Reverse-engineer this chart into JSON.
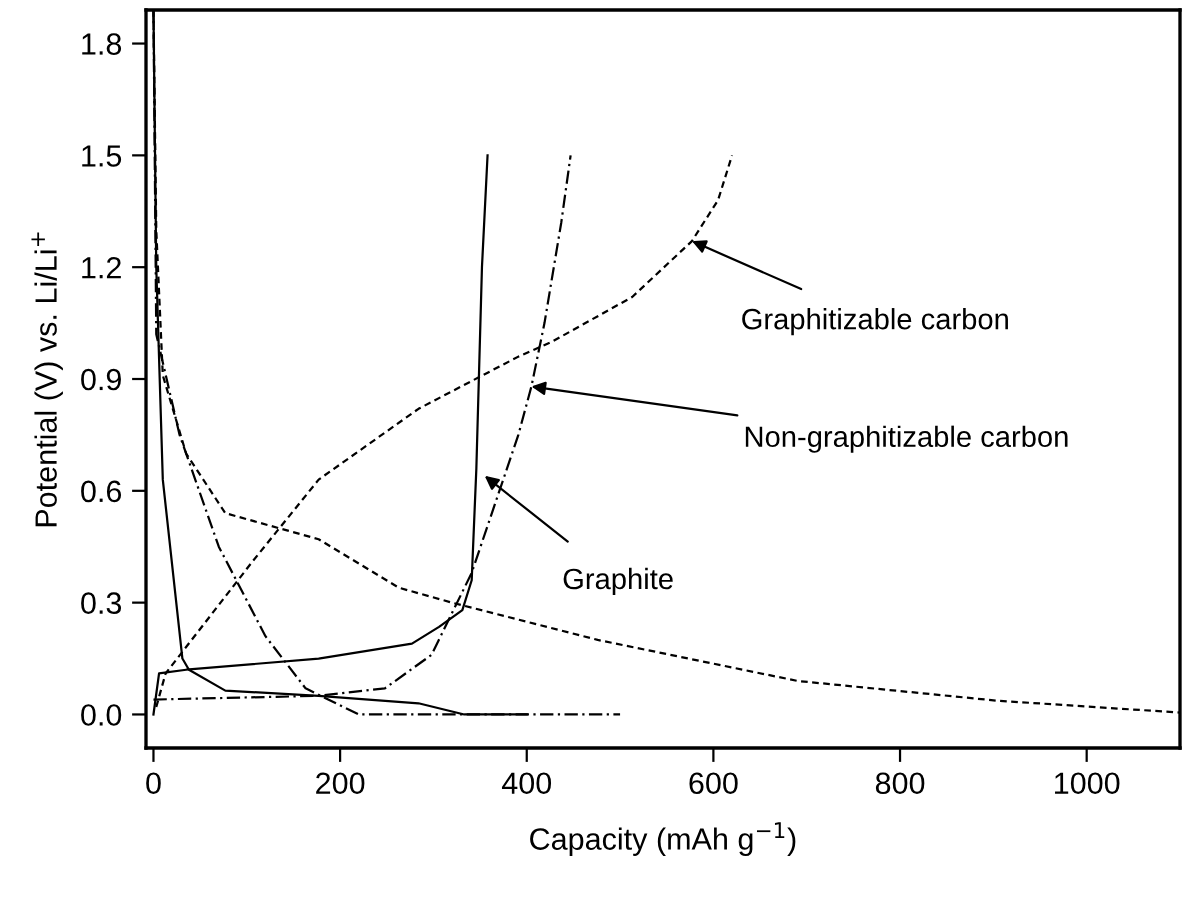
{
  "chart_data": {
    "type": "line",
    "xlabel": "Capacity (mAh g$^{−1}$)",
    "ylabel": "Potential (V) vs. Li/Li$^{+}$",
    "xlim": [
      -8,
      1100
    ],
    "ylim": [
      -0.09,
      1.89
    ],
    "xticks": [
      0,
      200,
      400,
      600,
      800,
      1000
    ],
    "yticks": [
      {
        "value": 0,
        "label": "0.0"
      },
      0.3,
      0.6,
      0.9,
      1.2,
      1.5,
      1.8
    ],
    "grid": false,
    "legend": false,
    "marker": "none",
    "series": [
      {
        "color": "#000000",
        "line_style": "solid",
        "x": [
          0,
          3,
          10,
          31,
          38,
          77,
          177,
          284,
          333,
          400
        ],
        "values": [
          1.89,
          1.2,
          0.63,
          0.15,
          0.12,
          0.064,
          0.05,
          0.03,
          0.0,
          0.0
        ]
      },
      {
        "color": "#000000",
        "line_style": "solid",
        "x": [
          0,
          6,
          35,
          177,
          277,
          306,
          331,
          341,
          346,
          352,
          358
        ],
        "values": [
          0.0,
          0.11,
          0.12,
          0.15,
          0.19,
          0.235,
          0.28,
          0.36,
          0.66,
          1.2,
          1.5
        ]
      },
      {
        "color": "#000000",
        "line_style": "dashdot",
        "x": [
          0,
          3,
          28,
          70,
          120,
          163,
          220,
          500
        ],
        "values": [
          1.89,
          1.02,
          0.75,
          0.45,
          0.21,
          0.07,
          0.0,
          0.0
        ]
      },
      {
        "color": "#000000",
        "line_style": "dashdot",
        "x": [
          0,
          177,
          248,
          298,
          341,
          391,
          405,
          419,
          437,
          447
        ],
        "values": [
          0.04,
          0.05,
          0.07,
          0.16,
          0.38,
          0.75,
          0.88,
          1.05,
          1.32,
          1.5
        ]
      },
      {
        "color": "#000000",
        "line_style": "dashed",
        "x": [
          0,
          3,
          10,
          35,
          77,
          177,
          263,
          320,
          476,
          690,
          904,
          1100
        ],
        "values": [
          1.89,
          1.3,
          0.91,
          0.7,
          0.54,
          0.47,
          0.34,
          0.3,
          0.2,
          0.09,
          0.037,
          0.005
        ]
      },
      {
        "color": "#000000",
        "line_style": "dashed",
        "x": [
          3,
          13,
          106,
          177,
          284,
          391,
          427,
          513,
          577,
          605,
          620
        ],
        "values": [
          0.02,
          0.11,
          0.41,
          0.63,
          0.82,
          0.96,
          1.0,
          1.12,
          1.27,
          1.38,
          1.5
        ]
      }
    ],
    "annotations": [
      {
        "text": "Graphitizable carbon",
        "x": 577,
        "y": 1.27
      },
      {
        "text": "Non-graphitizable carbon",
        "x": 405,
        "y": 0.88
      },
      {
        "text": "Graphite",
        "x": 355,
        "y": 0.64
      }
    ]
  }
}
